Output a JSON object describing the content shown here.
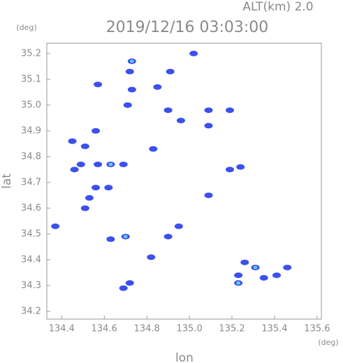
{
  "chart_data": {
    "type": "scatter",
    "title": "2019/12/16 03:03:00",
    "subtitle": "ALT(km) 2.0",
    "x_label": "lon",
    "y_label": "lat",
    "x_unit": "(deg)",
    "y_unit": "(deg)",
    "xlim": [
      134.33,
      135.62
    ],
    "ylim": [
      34.17,
      35.24
    ],
    "xticks": [
      134.4,
      134.6,
      134.8,
      {
        "value": 135,
        "label": "135.0"
      },
      135.2,
      135.4,
      135.6
    ],
    "yticks": [
      34.2,
      34.3,
      34.4,
      34.5,
      34.6,
      34.7,
      34.8,
      34.9,
      {
        "value": 35,
        "label": "35.0"
      },
      35.1,
      35.2
    ],
    "series": [
      {
        "color": "#3c50ee",
        "x": [
          134.73,
          134.72,
          134.91,
          135.02,
          134.57,
          134.73,
          134.85,
          134.71,
          134.56,
          134.45,
          134.51,
          134.46,
          134.49,
          134.57,
          134.63,
          134.69,
          134.56,
          134.62,
          134.51,
          134.53,
          134.37,
          134.7,
          134.63,
          134.9,
          134.95,
          134.82,
          134.72,
          134.69,
          135.09,
          135.19,
          134.9,
          135.24,
          135.19,
          135.09,
          135.26,
          135.23,
          135.31,
          135.46,
          135.41,
          135.35,
          135.23,
          135.09,
          134.96,
          134.83
        ],
        "values": [
          35.17,
          35.13,
          35.13,
          35.2,
          35.08,
          35.06,
          35.07,
          35.0,
          34.9,
          34.86,
          34.84,
          34.75,
          34.77,
          34.77,
          34.77,
          34.77,
          34.68,
          34.68,
          34.6,
          34.64,
          34.53,
          34.49,
          34.48,
          34.49,
          34.53,
          34.41,
          34.31,
          34.29,
          34.98,
          34.98,
          34.98,
          34.76,
          34.75,
          34.65,
          34.39,
          34.34,
          34.37,
          34.37,
          34.34,
          34.33,
          34.31,
          34.92,
          34.94,
          34.83
        ]
      },
      {
        "color": "#64c8f8",
        "x": [
          134.73,
          134.63,
          134.7,
          135.31,
          135.23
        ],
        "values": [
          35.17,
          34.77,
          34.49,
          34.37,
          34.31
        ]
      }
    ]
  }
}
